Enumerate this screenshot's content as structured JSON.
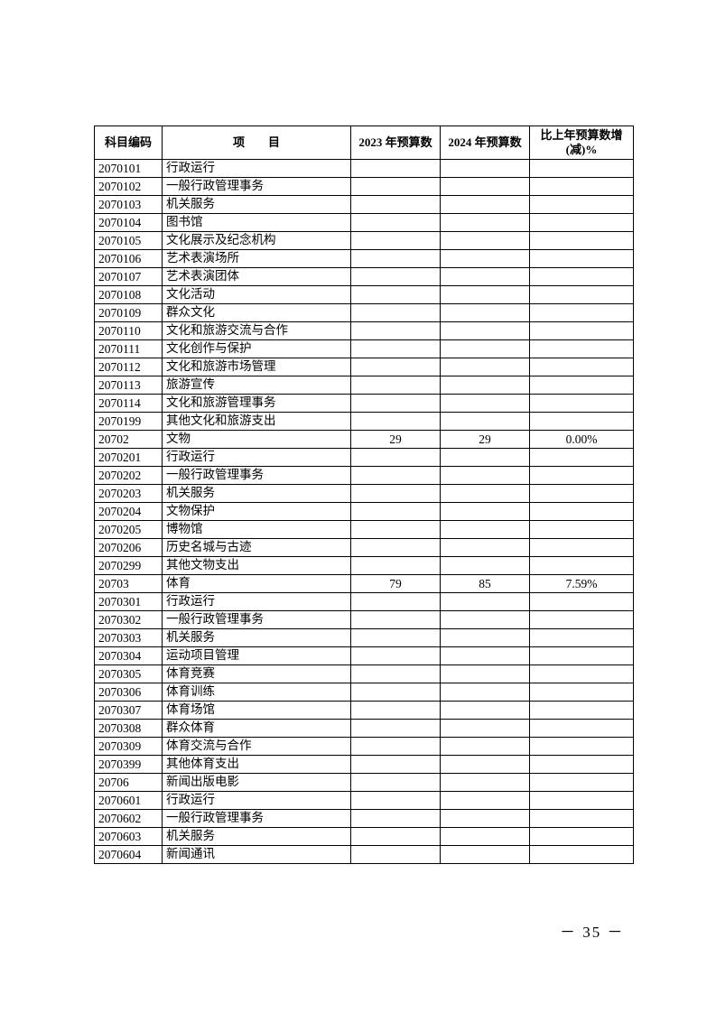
{
  "table": {
    "headers": [
      "科目编码",
      "项　　目",
      "2023 年预算数",
      "2024 年预算数",
      "比上年预算数增(减)%"
    ],
    "rows": [
      [
        "2070101",
        "行政运行",
        "",
        "",
        ""
      ],
      [
        "2070102",
        "一般行政管理事务",
        "",
        "",
        ""
      ],
      [
        "2070103",
        "机关服务",
        "",
        "",
        ""
      ],
      [
        "2070104",
        "图书馆",
        "",
        "",
        ""
      ],
      [
        "2070105",
        "文化展示及纪念机构",
        "",
        "",
        ""
      ],
      [
        "2070106",
        "艺术表演场所",
        "",
        "",
        ""
      ],
      [
        "2070107",
        "艺术表演团体",
        "",
        "",
        ""
      ],
      [
        "2070108",
        "文化活动",
        "",
        "",
        ""
      ],
      [
        "2070109",
        "群众文化",
        "",
        "",
        ""
      ],
      [
        "2070110",
        "文化和旅游交流与合作",
        "",
        "",
        ""
      ],
      [
        "2070111",
        "文化创作与保护",
        "",
        "",
        ""
      ],
      [
        "2070112",
        "文化和旅游市场管理",
        "",
        "",
        ""
      ],
      [
        "2070113",
        "旅游宣传",
        "",
        "",
        ""
      ],
      [
        "2070114",
        "文化和旅游管理事务",
        "",
        "",
        ""
      ],
      [
        "2070199",
        "其他文化和旅游支出",
        "",
        "",
        ""
      ],
      [
        "20702",
        "文物",
        "29",
        "29",
        "0.00%"
      ],
      [
        "2070201",
        "行政运行",
        "",
        "",
        ""
      ],
      [
        "2070202",
        "一般行政管理事务",
        "",
        "",
        ""
      ],
      [
        "2070203",
        "机关服务",
        "",
        "",
        ""
      ],
      [
        "2070204",
        "文物保护",
        "",
        "",
        ""
      ],
      [
        "2070205",
        "博物馆",
        "",
        "",
        ""
      ],
      [
        "2070206",
        "历史名城与古迹",
        "",
        "",
        ""
      ],
      [
        "2070299",
        "其他文物支出",
        "",
        "",
        ""
      ],
      [
        "20703",
        "体育",
        "79",
        "85",
        "7.59%"
      ],
      [
        "2070301",
        "行政运行",
        "",
        "",
        ""
      ],
      [
        "2070302",
        "一般行政管理事务",
        "",
        "",
        ""
      ],
      [
        "2070303",
        "机关服务",
        "",
        "",
        ""
      ],
      [
        "2070304",
        "运动项目管理",
        "",
        "",
        ""
      ],
      [
        "2070305",
        "体育竞赛",
        "",
        "",
        ""
      ],
      [
        "2070306",
        "体育训练",
        "",
        "",
        ""
      ],
      [
        "2070307",
        "体育场馆",
        "",
        "",
        ""
      ],
      [
        "2070308",
        "群众体育",
        "",
        "",
        ""
      ],
      [
        "2070309",
        "体育交流与合作",
        "",
        "",
        ""
      ],
      [
        "2070399",
        "其他体育支出",
        "",
        "",
        ""
      ],
      [
        "20706",
        "新闻出版电影",
        "",
        "",
        ""
      ],
      [
        "2070601",
        "行政运行",
        "",
        "",
        ""
      ],
      [
        "2070602",
        "一般行政管理事务",
        "",
        "",
        ""
      ],
      [
        "2070603",
        "机关服务",
        "",
        "",
        ""
      ],
      [
        "2070604",
        "新闻通讯",
        "",
        "",
        ""
      ]
    ]
  },
  "page_number": "－ 35 －"
}
